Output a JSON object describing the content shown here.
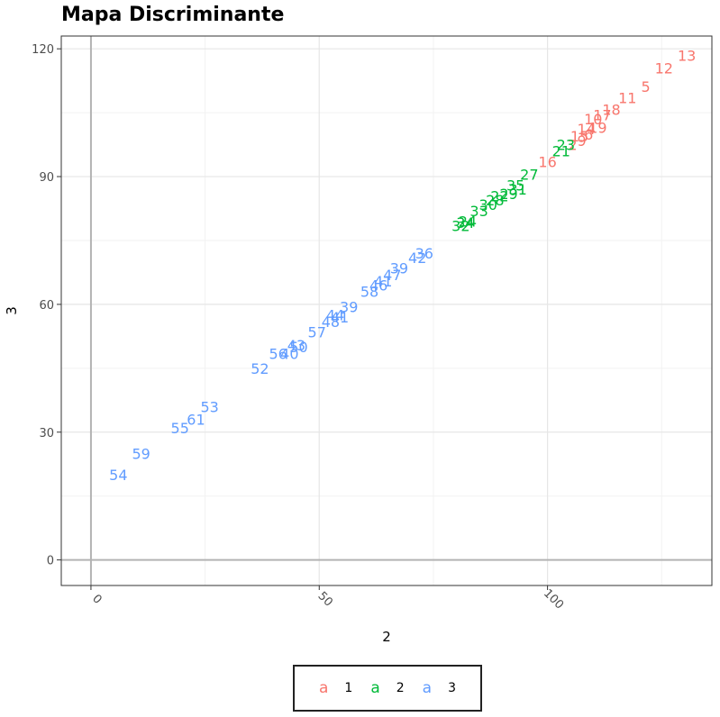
{
  "chart_data": {
    "type": "scatter",
    "title": "Mapa Discriminante",
    "xlabel": "2",
    "ylabel": "3",
    "xlim": [
      -6.5,
      136
    ],
    "ylim": [
      -6,
      123
    ],
    "xticks": [
      0,
      50,
      100
    ],
    "yticks": [
      0,
      30,
      60,
      90,
      120
    ],
    "grid": true,
    "legend_position": "bottom",
    "legend_key_glyph": "a",
    "series": [
      {
        "name": "1",
        "color": "#F8766D",
        "points": [
          {
            "label": "13",
            "x": 130.5,
            "y": 118.5
          },
          {
            "label": "12",
            "x": 125.5,
            "y": 115.5
          },
          {
            "label": "5",
            "x": 121.5,
            "y": 111.2
          },
          {
            "label": "11",
            "x": 117.5,
            "y": 108.5
          },
          {
            "label": "18",
            "x": 114,
            "y": 105.8
          },
          {
            "label": "17",
            "x": 112,
            "y": 104.5
          },
          {
            "label": "10",
            "x": 110,
            "y": 103.5
          },
          {
            "label": "19",
            "x": 111,
            "y": 101.5
          },
          {
            "label": "14",
            "x": 108.5,
            "y": 101.2
          },
          {
            "label": "6",
            "x": 109,
            "y": 100
          },
          {
            "label": "15",
            "x": 107,
            "y": 99.5
          },
          {
            "label": "9",
            "x": 107.5,
            "y": 98.5
          },
          {
            "label": "2",
            "x": 105.5,
            "y": 97.5
          },
          {
            "label": "16",
            "x": 100,
            "y": 93.5
          }
        ]
      },
      {
        "name": "2",
        "color": "#00BA38",
        "points": [
          {
            "label": "27",
            "x": 96,
            "y": 90.5
          },
          {
            "label": "23",
            "x": 104,
            "y": 97.5
          },
          {
            "label": "21",
            "x": 103,
            "y": 96
          },
          {
            "label": "35",
            "x": 93,
            "y": 88
          },
          {
            "label": "31",
            "x": 93.5,
            "y": 87
          },
          {
            "label": "29",
            "x": 91.5,
            "y": 86
          },
          {
            "label": "22",
            "x": 89.5,
            "y": 85.5
          },
          {
            "label": "28",
            "x": 88.5,
            "y": 84.5
          },
          {
            "label": "30",
            "x": 87,
            "y": 83.5
          },
          {
            "label": "33",
            "x": 85,
            "y": 82
          },
          {
            "label": "24",
            "x": 82.5,
            "y": 79.5
          },
          {
            "label": "34",
            "x": 82,
            "y": 79.2
          },
          {
            "label": "32",
            "x": 81,
            "y": 78.5
          }
        ]
      },
      {
        "name": "3",
        "color": "#619CFF",
        "points": [
          {
            "label": "36",
            "x": 73,
            "y": 72
          },
          {
            "label": "42",
            "x": 71.5,
            "y": 71
          },
          {
            "label": "39",
            "x": 67.5,
            "y": 68.5
          },
          {
            "label": "47",
            "x": 66,
            "y": 67
          },
          {
            "label": "41",
            "x": 64,
            "y": 65.5
          },
          {
            "label": "46",
            "x": 63,
            "y": 64.5
          },
          {
            "label": "58",
            "x": 61,
            "y": 63
          },
          {
            "label": "39",
            "x": 56.5,
            "y": 59.5
          },
          {
            "label": "44",
            "x": 53.5,
            "y": 57.5
          },
          {
            "label": "41",
            "x": 54.5,
            "y": 57
          },
          {
            "label": "48",
            "x": 52.5,
            "y": 56
          },
          {
            "label": "57",
            "x": 49.5,
            "y": 53.5
          },
          {
            "label": "43",
            "x": 45,
            "y": 50.5
          },
          {
            "label": "50",
            "x": 45.5,
            "y": 50
          },
          {
            "label": "56",
            "x": 41,
            "y": 48.5
          },
          {
            "label": "40",
            "x": 43.5,
            "y": 48.5
          },
          {
            "label": "52",
            "x": 37,
            "y": 45
          },
          {
            "label": "53",
            "x": 26,
            "y": 36
          },
          {
            "label": "61",
            "x": 23,
            "y": 33
          },
          {
            "label": "55",
            "x": 19.5,
            "y": 31
          },
          {
            "label": "59",
            "x": 11,
            "y": 25
          },
          {
            "label": "54",
            "x": 6,
            "y": 20
          }
        ]
      }
    ]
  }
}
